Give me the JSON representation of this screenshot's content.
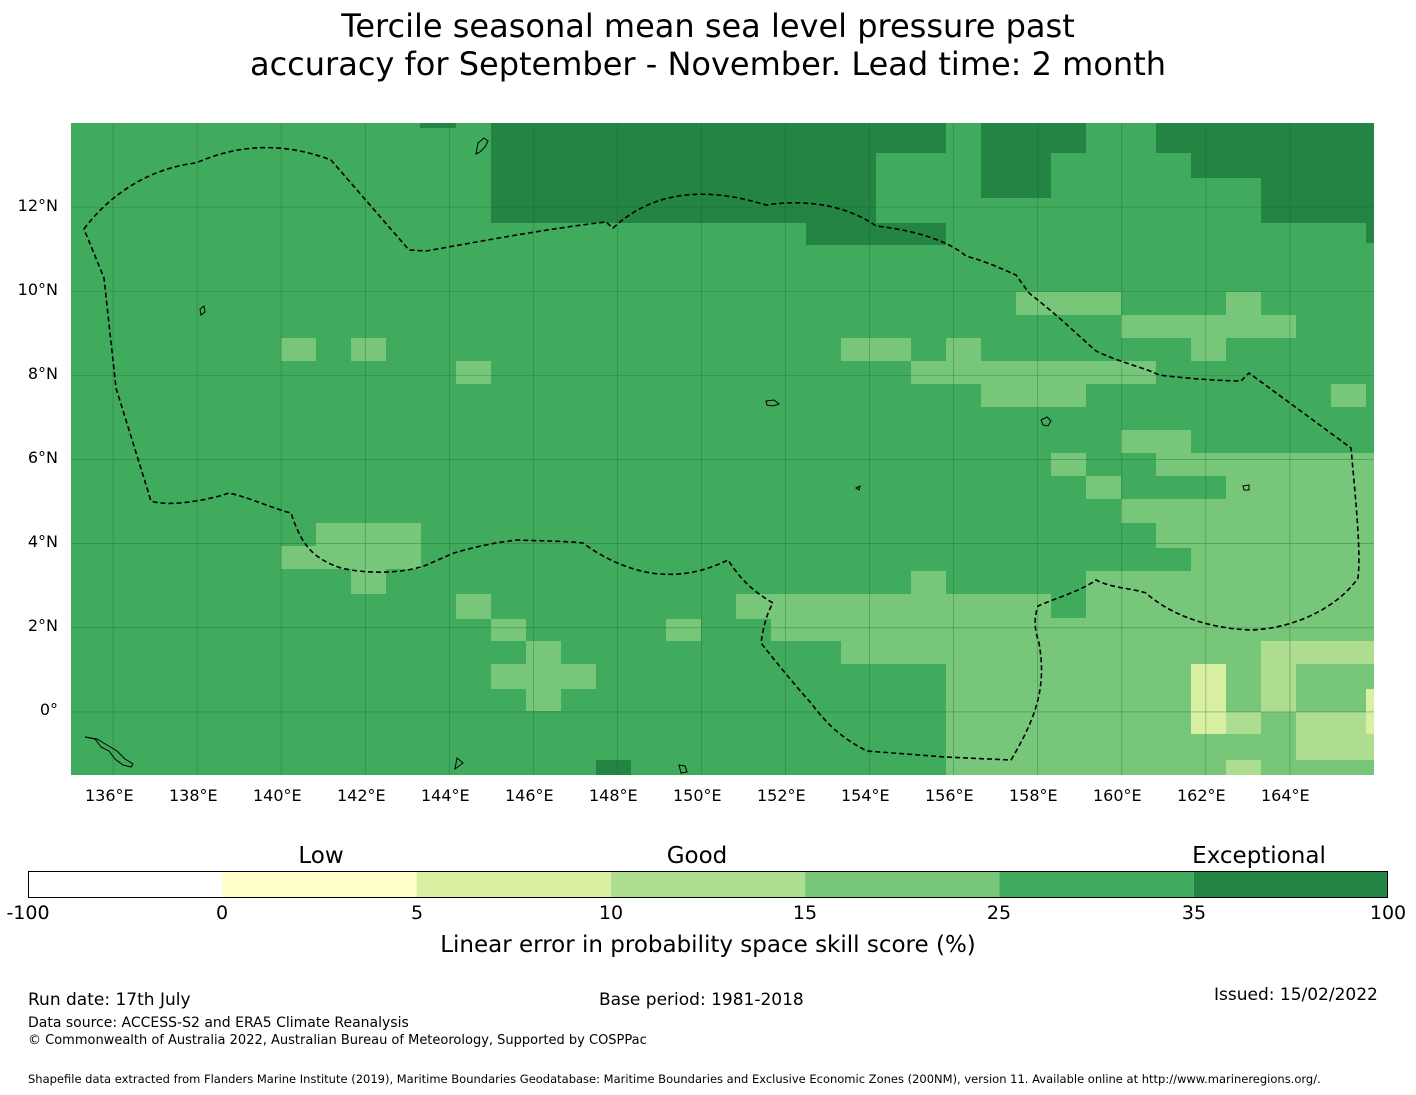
{
  "title_line1": "Tercile seasonal mean sea level pressure past",
  "title_line2": "accuracy for September - November. Lead time: 2 month",
  "map": {
    "lon_range": [
      135,
      166
    ],
    "lat_range": [
      -1.5,
      14
    ],
    "lon_labels": [
      "136°E",
      "138°E",
      "140°E",
      "142°E",
      "144°E",
      "146°E",
      "148°E",
      "150°E",
      "152°E",
      "154°E",
      "156°E",
      "158°E",
      "160°E",
      "162°E",
      "164°E"
    ],
    "lat_labels": [
      "12°N",
      "10°N",
      "8°N",
      "6°N",
      "4°N",
      "2°N",
      "0°"
    ],
    "category_colors": {
      "c0_5": "#ffffcc",
      "c5_10": "#d9f0a3",
      "c10_15": "#addd8e",
      "c15_25": "#78c679",
      "c25_35": "#41ab5d",
      "c35_100": "#238443"
    },
    "base_category": "c25_35",
    "eez_boundary": "dashed-black"
  },
  "colorbar": {
    "categories": [
      "Low",
      "Good",
      "Exceptional"
    ],
    "ticks": [
      "-100",
      "0",
      "5",
      "10",
      "15",
      "25",
      "35",
      "100"
    ],
    "colors": [
      "#ffffff",
      "#ffffcc",
      "#d9f0a3",
      "#addd8e",
      "#78c679",
      "#41ab5d",
      "#238443"
    ],
    "label": "Linear error in probability space skill score (%)"
  },
  "footer": {
    "run_date": "Run date: 17th July",
    "base_period": "Base period: 1981-2018",
    "issued": "Issued: 15/02/2022",
    "data_source": "Data source: ACCESS-S2 and ERA5 Climate Reanalysis",
    "copyright": "© Commonwealth of Australia 2022, Australian Bureau of Meteorology, Supported by COSPPac",
    "shapefile": "Shapefile data extracted from Flanders Marine Institute (2019), Maritime Boundaries Geodatabase: Maritime Boundaries and Exclusive Economic Zones (200NM), version 11. Available online at http://www.marineregions.org/."
  }
}
